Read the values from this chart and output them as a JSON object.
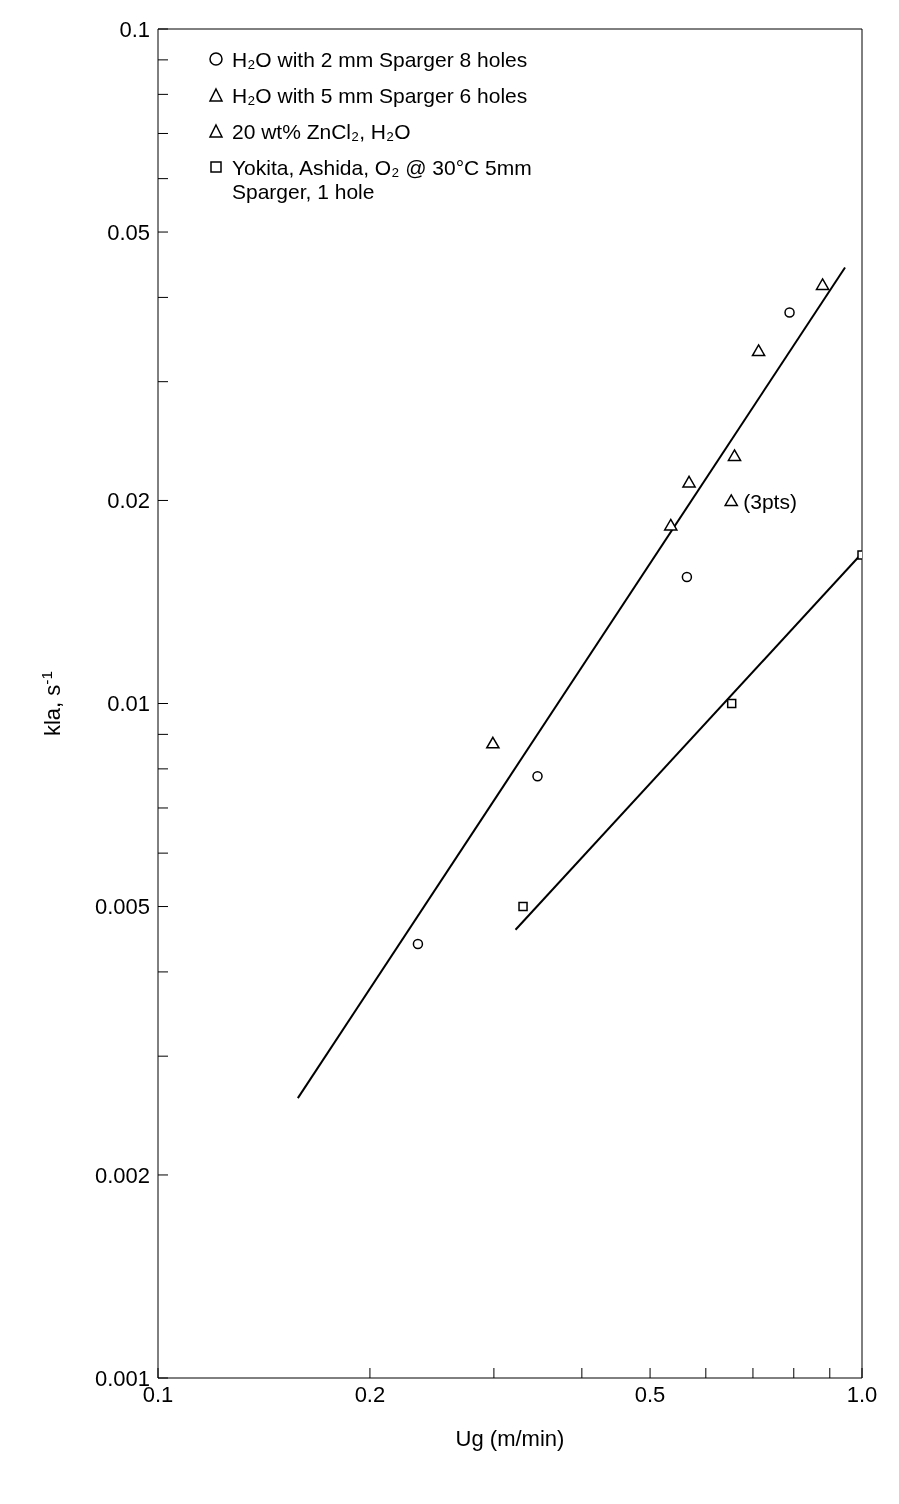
{
  "chart_data": {
    "type": "scatter",
    "xlabel": "Ug (m/min)",
    "ylabel": "kla, s$^{-1}$",
    "log": "xy",
    "xlim": [
      0.1,
      1
    ],
    "ylim": [
      0.001,
      0.1
    ],
    "xticks": [
      0.1,
      0.2,
      {
        "value": 0.3,
        "label": null
      },
      {
        "value": 0.4,
        "label": null
      },
      0.5,
      {
        "value": 0.6,
        "label": null
      },
      {
        "value": 0.7,
        "label": null
      },
      {
        "value": 0.8,
        "label": null
      },
      {
        "value": 0.9,
        "label": null
      },
      {
        "value": 1,
        "label": "1.0"
      }
    ],
    "yticks": [
      0.001,
      0.002,
      {
        "value": 0.003,
        "label": null
      },
      {
        "value": 0.004,
        "label": null
      },
      0.005,
      {
        "value": 0.006,
        "label": null
      },
      {
        "value": 0.007,
        "label": null
      },
      {
        "value": 0.008,
        "label": null
      },
      {
        "value": 0.009,
        "label": null
      },
      0.01,
      0.02,
      {
        "value": 0.03,
        "label": null
      },
      {
        "value": 0.04,
        "label": null
      },
      0.05,
      {
        "value": 0.06,
        "label": null
      },
      {
        "value": 0.07,
        "label": null
      },
      {
        "value": 0.08,
        "label": null
      },
      {
        "value": 0.09,
        "label": null
      },
      0.1
    ],
    "legend": "top left",
    "grid": false,
    "series": [
      {
        "name": "H₂O with 2 mm Sparger 8 holes",
        "color": "#000000",
        "marker": "circle",
        "x": [
          0.234,
          0.346,
          0.564,
          0.789
        ],
        "values": [
          0.0044,
          0.0078,
          0.0154,
          0.038
        ]
      },
      {
        "name": "H₂O with 5 mm Sparger 6 holes",
        "color": "#000000",
        "marker": "triangle",
        "x": [
          0.568,
          0.659,
          0.652
        ],
        "values": [
          0.0212,
          0.0232,
          0.0199
        ]
      },
      {
        "name": "20 wt% ZnCl₂, H₂O",
        "color": "#000000",
        "marker": "triangle",
        "x": [
          0.299,
          0.535,
          0.713,
          0.879
        ],
        "values": [
          0.0087,
          0.0183,
          0.0332,
          0.0416
        ]
      },
      {
        "name": "Yokita, Ashida, O₂ @ 30°C 5mm Sparger, 1 hole",
        "color": "#000000",
        "marker": "square",
        "x": [
          0.33,
          0.653,
          1
        ],
        "values": [
          0.005,
          0.01,
          0.0166
        ]
      },
      {
        "type": "line",
        "color": "#000000",
        "marker": "none",
        "x": [
          0.158,
          0.946
        ],
        "values": [
          0.0026,
          0.0443
        ]
      },
      {
        "type": "line",
        "color": "#000000",
        "marker": "none",
        "x": [
          0.322,
          1
        ],
        "values": [
          0.00462,
          0.0167
        ]
      }
    ],
    "annotations": [
      {
        "text": "(3pts)",
        "x": 0.652,
        "y": 0.0199
      }
    ]
  }
}
